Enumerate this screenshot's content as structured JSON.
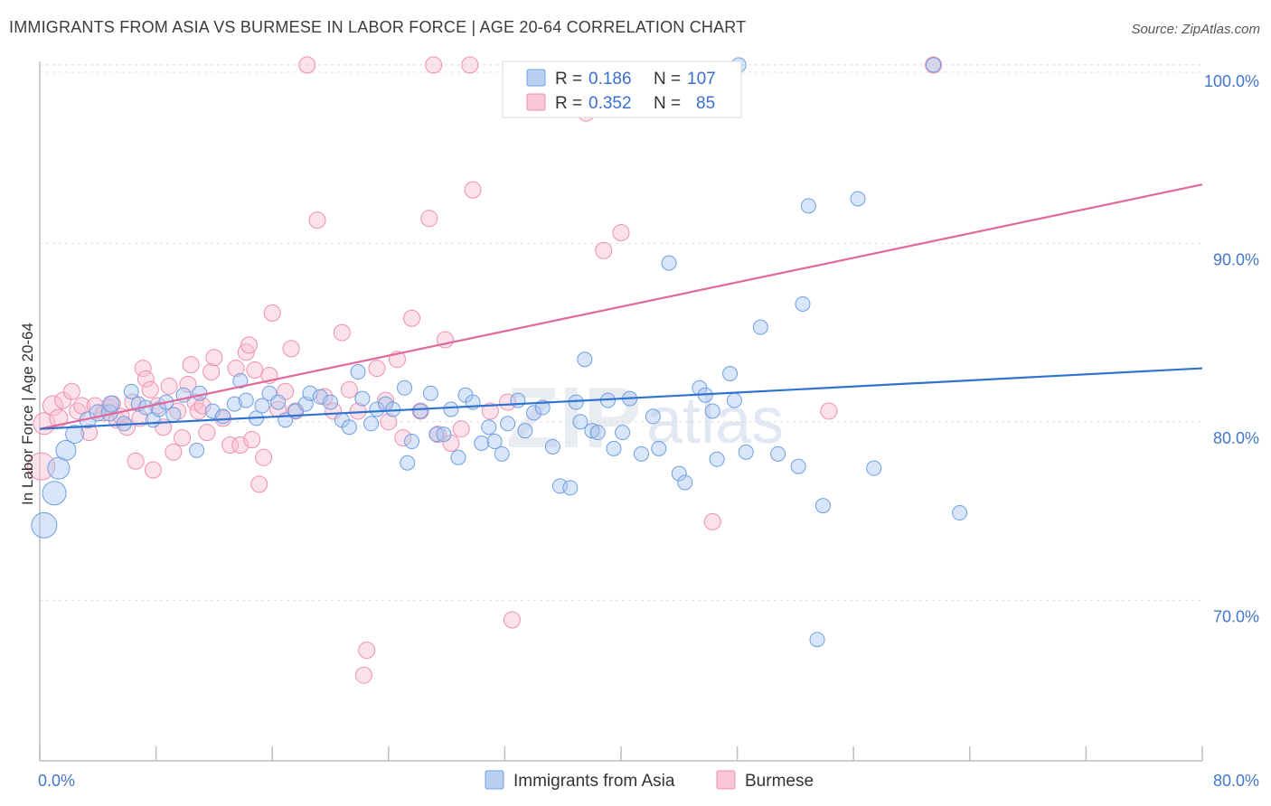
{
  "title": "IMMIGRANTS FROM ASIA VS BURMESE IN LABOR FORCE | AGE 20-64 CORRELATION CHART",
  "source": "Source: ZipAtlas.com",
  "watermark": {
    "zip": "ZIP",
    "atlas": "atlas"
  },
  "legend": {
    "r_label": "R =",
    "n_label": "N =",
    "rows": [
      {
        "r": "0.186",
        "n": "107"
      },
      {
        "r": "0.352",
        "n": "85"
      }
    ]
  },
  "chart_data": {
    "type": "scatter",
    "title": "IMMIGRANTS FROM ASIA VS BURMESE IN LABOR FORCE | AGE 20-64 CORRELATION CHART",
    "xlabel": "",
    "ylabel": "In Labor Force | Age 20-64",
    "xlim": [
      0,
      80
    ],
    "ylim": [
      61,
      100.5
    ],
    "x_tick_labels": [
      "0.0%",
      "80.0%"
    ],
    "y_ticks": [
      70,
      80,
      90,
      100
    ],
    "y_tick_labels": [
      "70.0%",
      "80.0%",
      "90.0%",
      "100.0%"
    ],
    "grid": true,
    "legend_position": "top-center",
    "colors": {
      "asia": "#6f9fe0",
      "burmese": "#ee8fae",
      "asia_line": "#2f73d0",
      "burmese_line": "#e0689a"
    },
    "series": [
      {
        "name": "Immigrants from Asia",
        "r": 0.186,
        "n": 107,
        "trend": [
          [
            0,
            79.6
          ],
          [
            80,
            83.0
          ]
        ],
        "points": [
          [
            0.3,
            74.2,
            14
          ],
          [
            1.0,
            76.0,
            13
          ],
          [
            1.3,
            77.4,
            12
          ],
          [
            1.8,
            78.4,
            11
          ],
          [
            2.4,
            79.3,
            10
          ],
          [
            3.3,
            80.1,
            9
          ],
          [
            4.0,
            80.5,
            9
          ],
          [
            4.8,
            80.5,
            9
          ],
          [
            4.9,
            81.0,
            9
          ],
          [
            5.8,
            79.9,
            8
          ],
          [
            6.3,
            81.7,
            8
          ],
          [
            6.8,
            81.0,
            8
          ],
          [
            7.3,
            80.8,
            8
          ],
          [
            7.8,
            80.1,
            8
          ],
          [
            8.2,
            80.7,
            8
          ],
          [
            8.7,
            81.1,
            8
          ],
          [
            9.2,
            80.4,
            8
          ],
          [
            9.9,
            81.5,
            8
          ],
          [
            10.8,
            78.4,
            8
          ],
          [
            11.0,
            81.6,
            8
          ],
          [
            11.9,
            80.6,
            8
          ],
          [
            12.6,
            80.3,
            8
          ],
          [
            13.4,
            81.0,
            8
          ],
          [
            13.8,
            82.3,
            8
          ],
          [
            14.2,
            81.2,
            8
          ],
          [
            14.9,
            80.2,
            8
          ],
          [
            15.3,
            80.9,
            8
          ],
          [
            15.8,
            81.6,
            8
          ],
          [
            16.4,
            81.1,
            8
          ],
          [
            16.9,
            80.1,
            8
          ],
          [
            17.6,
            80.6,
            8
          ],
          [
            18.3,
            81.0,
            8
          ],
          [
            18.6,
            81.6,
            8
          ],
          [
            19.3,
            81.4,
            8
          ],
          [
            20.0,
            81.1,
            8
          ],
          [
            20.8,
            80.1,
            8
          ],
          [
            21.3,
            79.7,
            8
          ],
          [
            21.9,
            82.8,
            8
          ],
          [
            22.2,
            81.3,
            8
          ],
          [
            22.8,
            79.9,
            8
          ],
          [
            23.2,
            80.7,
            8
          ],
          [
            23.8,
            81.0,
            8
          ],
          [
            24.3,
            80.7,
            8
          ],
          [
            25.1,
            81.9,
            8
          ],
          [
            25.6,
            78.9,
            8
          ],
          [
            25.3,
            77.7,
            8
          ],
          [
            26.2,
            80.6,
            8
          ],
          [
            26.9,
            81.6,
            8
          ],
          [
            27.3,
            79.3,
            8
          ],
          [
            27.8,
            79.3,
            8
          ],
          [
            28.3,
            80.7,
            8
          ],
          [
            28.8,
            78.0,
            8
          ],
          [
            29.3,
            81.5,
            8
          ],
          [
            29.8,
            81.1,
            8
          ],
          [
            30.4,
            78.8,
            8
          ],
          [
            30.9,
            79.7,
            8
          ],
          [
            31.3,
            78.9,
            8
          ],
          [
            31.8,
            78.2,
            8
          ],
          [
            32.2,
            79.9,
            8
          ],
          [
            32.9,
            81.2,
            8
          ],
          [
            33.4,
            79.5,
            8
          ],
          [
            34.0,
            80.5,
            8
          ],
          [
            34.6,
            80.8,
            8
          ],
          [
            35.3,
            78.6,
            8
          ],
          [
            35.8,
            76.4,
            8
          ],
          [
            36.5,
            76.3,
            8
          ],
          [
            36.9,
            81.1,
            8
          ],
          [
            37.2,
            80.0,
            8
          ],
          [
            37.5,
            83.5,
            8
          ],
          [
            38.0,
            79.5,
            8
          ],
          [
            38.4,
            79.4,
            8
          ],
          [
            39.1,
            81.2,
            8
          ],
          [
            39.5,
            78.5,
            8
          ],
          [
            40.1,
            79.4,
            8
          ],
          [
            40.6,
            81.3,
            8
          ],
          [
            41.4,
            78.2,
            8
          ],
          [
            42.2,
            80.3,
            8
          ],
          [
            42.6,
            78.5,
            8
          ],
          [
            43.3,
            88.9,
            8
          ],
          [
            44.0,
            77.1,
            8
          ],
          [
            44.4,
            76.6,
            8
          ],
          [
            45.4,
            81.9,
            8
          ],
          [
            45.8,
            81.5,
            8
          ],
          [
            46.3,
            80.6,
            8
          ],
          [
            46.6,
            77.9,
            8
          ],
          [
            47.5,
            82.7,
            8
          ],
          [
            47.8,
            81.2,
            8
          ],
          [
            48.6,
            78.3,
            8
          ],
          [
            49.6,
            85.3,
            8
          ],
          [
            50.8,
            78.2,
            8
          ],
          [
            52.2,
            77.5,
            8
          ],
          [
            52.5,
            86.6,
            8
          ],
          [
            52.9,
            92.1,
            8
          ],
          [
            53.5,
            67.8,
            8
          ],
          [
            53.9,
            75.3,
            8
          ],
          [
            56.3,
            92.5,
            8
          ],
          [
            57.4,
            77.4,
            8
          ],
          [
            63.3,
            74.9,
            8
          ],
          [
            61.5,
            100.0,
            8
          ],
          [
            48.1,
            100.0,
            8
          ]
        ]
      },
      {
        "name": "Burmese",
        "r": 0.352,
        "n": 85,
        "trend": [
          [
            0,
            79.6
          ],
          [
            80,
            93.3
          ]
        ],
        "points": [
          [
            0.1,
            77.5,
            15
          ],
          [
            0.3,
            79.9,
            12
          ],
          [
            0.9,
            80.9,
            11
          ],
          [
            1.3,
            80.2,
            10
          ],
          [
            1.6,
            81.2,
            9
          ],
          [
            2.2,
            81.7,
            9
          ],
          [
            2.6,
            80.6,
            9
          ],
          [
            2.9,
            80.9,
            9
          ],
          [
            3.4,
            79.4,
            9
          ],
          [
            3.8,
            80.9,
            9
          ],
          [
            4.4,
            80.5,
            9
          ],
          [
            4.8,
            80.8,
            9
          ],
          [
            5.0,
            81.0,
            9
          ],
          [
            5.3,
            80.1,
            9
          ],
          [
            5.6,
            80.3,
            9
          ],
          [
            6.0,
            79.7,
            9
          ],
          [
            6.4,
            81.1,
            9
          ],
          [
            6.6,
            77.8,
            9
          ],
          [
            6.9,
            80.2,
            9
          ],
          [
            7.1,
            83.0,
            9
          ],
          [
            7.3,
            82.4,
            9
          ],
          [
            7.6,
            81.8,
            9
          ],
          [
            7.8,
            77.3,
            9
          ],
          [
            8.1,
            80.9,
            9
          ],
          [
            8.5,
            79.7,
            9
          ],
          [
            8.9,
            82.0,
            9
          ],
          [
            9.2,
            78.3,
            9
          ],
          [
            9.5,
            80.6,
            9
          ],
          [
            9.8,
            79.1,
            9
          ],
          [
            10.2,
            82.1,
            9
          ],
          [
            10.4,
            83.2,
            9
          ],
          [
            10.7,
            81.1,
            9
          ],
          [
            10.9,
            80.6,
            9
          ],
          [
            11.2,
            80.9,
            9
          ],
          [
            11.5,
            79.4,
            9
          ],
          [
            11.8,
            82.8,
            9
          ],
          [
            12.0,
            83.6,
            9
          ],
          [
            12.6,
            80.2,
            9
          ],
          [
            13.1,
            78.7,
            9
          ],
          [
            13.5,
            83.0,
            9
          ],
          [
            13.8,
            78.7,
            9
          ],
          [
            14.2,
            83.9,
            9
          ],
          [
            14.4,
            84.3,
            9
          ],
          [
            14.6,
            79.0,
            9
          ],
          [
            14.8,
            82.9,
            9
          ],
          [
            15.1,
            76.5,
            9
          ],
          [
            15.4,
            78.0,
            9
          ],
          [
            15.8,
            82.6,
            9
          ],
          [
            16.0,
            86.1,
            9
          ],
          [
            16.4,
            80.7,
            9
          ],
          [
            16.9,
            81.7,
            9
          ],
          [
            17.3,
            84.1,
            9
          ],
          [
            17.6,
            80.6,
            9
          ],
          [
            18.4,
            100.0,
            9
          ],
          [
            19.1,
            91.3,
            9
          ],
          [
            19.6,
            81.4,
            9
          ],
          [
            20.2,
            80.6,
            9
          ],
          [
            20.8,
            85.0,
            9
          ],
          [
            21.3,
            81.8,
            9
          ],
          [
            21.9,
            80.6,
            9
          ],
          [
            22.5,
            67.2,
            9
          ],
          [
            22.3,
            65.8,
            9
          ],
          [
            23.2,
            83.0,
            9
          ],
          [
            23.8,
            81.2,
            9
          ],
          [
            24.0,
            80.0,
            9
          ],
          [
            24.6,
            83.5,
            9
          ],
          [
            25.0,
            79.1,
            9
          ],
          [
            25.6,
            85.8,
            9
          ],
          [
            26.2,
            80.6,
            9
          ],
          [
            26.8,
            91.4,
            9
          ],
          [
            27.1,
            100.0,
            9
          ],
          [
            27.4,
            79.3,
            9
          ],
          [
            27.9,
            84.6,
            9
          ],
          [
            28.3,
            78.8,
            9
          ],
          [
            29.0,
            79.6,
            9
          ],
          [
            29.6,
            100.0,
            9
          ],
          [
            29.8,
            93.0,
            9
          ],
          [
            31.0,
            80.6,
            9
          ],
          [
            32.2,
            81.1,
            9
          ],
          [
            32.5,
            68.9,
            9
          ],
          [
            37.6,
            97.3,
            9
          ],
          [
            38.8,
            89.6,
            9
          ],
          [
            40.0,
            90.6,
            9
          ],
          [
            46.3,
            74.4,
            9
          ],
          [
            54.3,
            80.6,
            9
          ],
          [
            61.5,
            100.0,
            9
          ]
        ]
      }
    ]
  },
  "bottom_legend": [
    "Immigrants from Asia",
    "Burmese"
  ]
}
